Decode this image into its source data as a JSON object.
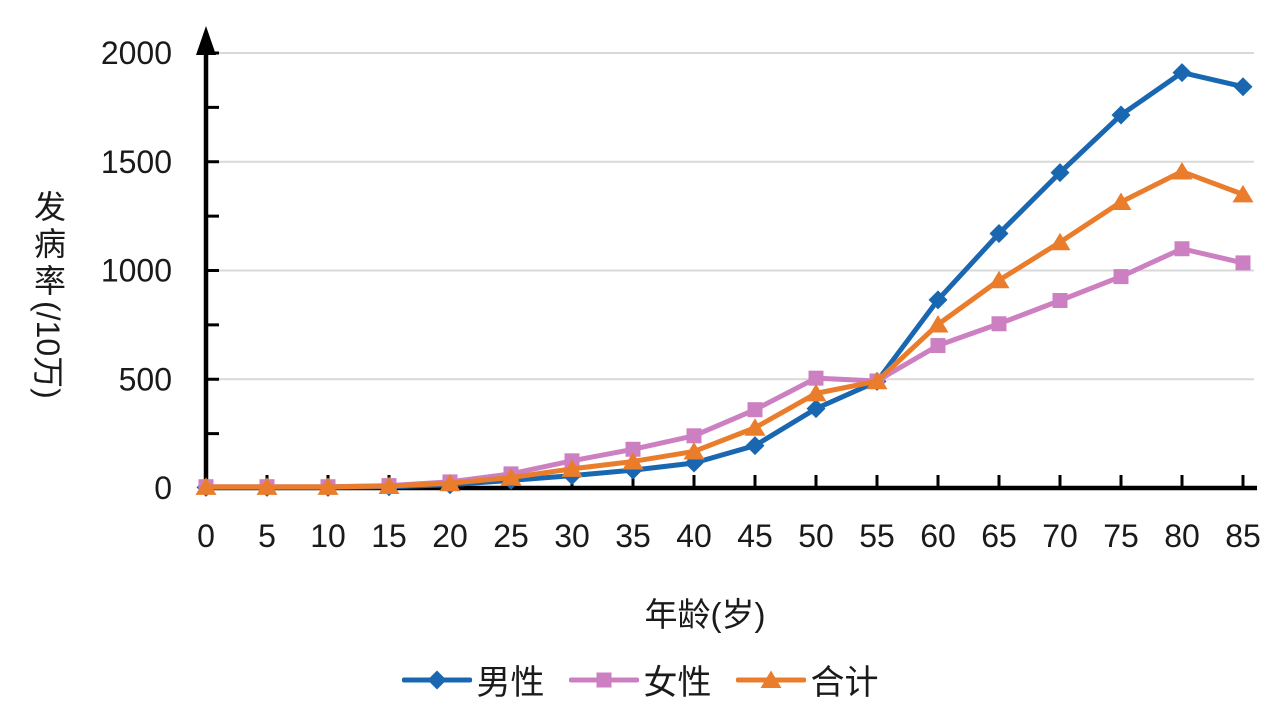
{
  "chart_data": {
    "type": "line",
    "title": "",
    "xlabel": "年龄(岁)",
    "ylabel": "发病率(/10万)",
    "x": [
      0,
      5,
      10,
      15,
      20,
      25,
      30,
      35,
      40,
      45,
      50,
      55,
      60,
      65,
      70,
      75,
      80,
      85
    ],
    "y_ticks": [
      0,
      500,
      1000,
      1500,
      2000
    ],
    "y_minor_step": 250,
    "ylim": [
      0,
      2000
    ],
    "xlim": [
      0,
      85
    ],
    "grid": "horizontal-only",
    "legend_position": "bottom",
    "axis_color": "#000000",
    "grid_color": "#d9d9d9",
    "text_color": "#1a1a1a",
    "series": [
      {
        "key": "male",
        "name": "男性",
        "color": "#1a67b1",
        "marker": "diamond",
        "values": [
          3,
          3,
          3,
          6,
          15,
          35,
          57,
          82,
          115,
          195,
          365,
          490,
          865,
          1170,
          1450,
          1715,
          1910,
          1845
        ]
      },
      {
        "key": "female",
        "name": "女性",
        "color": "#cc80c2",
        "marker": "square",
        "values": [
          6,
          6,
          6,
          11,
          28,
          65,
          125,
          178,
          240,
          360,
          505,
          492,
          655,
          755,
          862,
          972,
          1100,
          1035
        ]
      },
      {
        "key": "total",
        "name": "合计",
        "color": "#ea7d2c",
        "marker": "triangle",
        "values": [
          5,
          5,
          5,
          9,
          22,
          48,
          88,
          122,
          168,
          277,
          435,
          491,
          752,
          955,
          1130,
          1315,
          1455,
          1350
        ]
      }
    ]
  }
}
